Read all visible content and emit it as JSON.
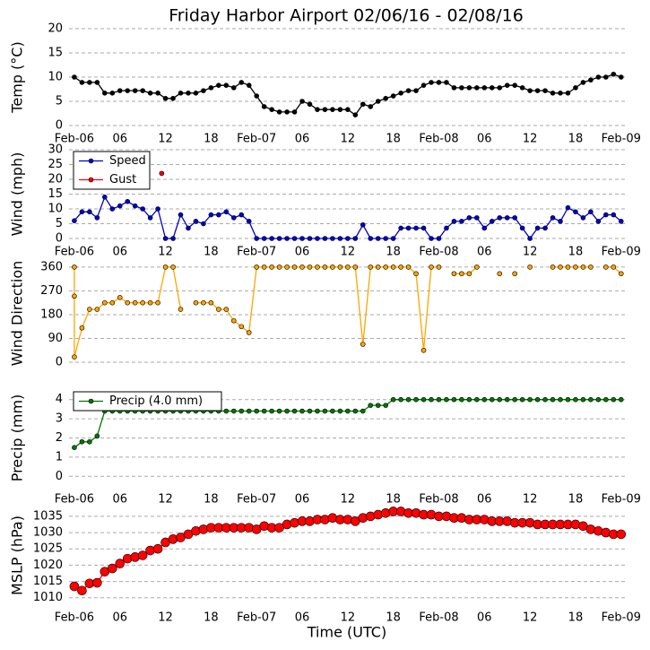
{
  "chart_data": [
    {
      "type": "line",
      "title": "Friday Harbor Airport 02/06/16 - 02/08/16",
      "ylabel": "Temp (°C)",
      "xlim": [
        -0.7,
        72.5
      ],
      "ylim": [
        0,
        20
      ],
      "yticks": [
        0,
        5,
        10,
        15,
        20
      ],
      "grid": true,
      "xticks": [
        {
          "value": 0,
          "label": "Feb-06"
        },
        {
          "value": 6,
          "label": "06"
        },
        {
          "value": 12,
          "label": "12"
        },
        {
          "value": 18,
          "label": "18"
        },
        {
          "value": 24,
          "label": "Feb-07"
        },
        {
          "value": 30,
          "label": "06"
        },
        {
          "value": 36,
          "label": "12"
        },
        {
          "value": 42,
          "label": "18"
        },
        {
          "value": 48,
          "label": "Feb-08"
        },
        {
          "value": 54,
          "label": "06"
        },
        {
          "value": 60,
          "label": "12"
        },
        {
          "value": 66,
          "label": "18"
        },
        {
          "value": 72,
          "label": "Feb-09"
        }
      ],
      "series": [
        {
          "color": "#000000",
          "x": [
            0,
            1,
            2,
            3,
            4,
            5,
            6,
            7,
            8,
            9,
            10,
            11,
            12,
            13,
            14,
            15,
            16,
            17,
            18,
            19,
            20,
            21,
            22,
            23,
            24,
            25,
            26,
            27,
            28,
            29,
            30,
            31,
            32,
            33,
            34,
            35,
            36,
            37,
            38,
            39,
            40,
            41,
            42,
            43,
            44,
            45,
            46,
            47,
            48,
            49,
            50,
            51,
            52,
            53,
            54,
            55,
            56,
            57,
            58,
            59,
            60,
            61,
            62,
            63,
            64,
            65,
            66,
            67,
            68,
            69,
            70,
            71,
            72
          ],
          "values": [
            10,
            8.9,
            8.9,
            8.9,
            6.7,
            6.7,
            7.2,
            7.2,
            7.2,
            7.2,
            6.7,
            6.7,
            5.6,
            5.6,
            6.7,
            6.7,
            6.7,
            7.2,
            7.8,
            8.3,
            8.3,
            7.8,
            8.9,
            8.3,
            6.1,
            3.9,
            3.3,
            2.8,
            2.8,
            2.8,
            5,
            4.4,
            3.3,
            3.3,
            3.3,
            3.3,
            3.3,
            2.2,
            4.4,
            3.9,
            5,
            5.6,
            6.1,
            6.7,
            7.2,
            7.2,
            8.3,
            8.9,
            8.9,
            8.9,
            7.8,
            7.8,
            7.8,
            7.8,
            7.8,
            7.8,
            7.8,
            8.3,
            8.3,
            7.8,
            7.2,
            7.2,
            7.2,
            6.7,
            6.7,
            6.7,
            7.8,
            8.9,
            9.4,
            10,
            10,
            10.6,
            10
          ]
        }
      ]
    },
    {
      "type": "line",
      "ylabel": "Wind (mph)",
      "legend": "upper left",
      "xlim": [
        -0.7,
        72.5
      ],
      "ylim": [
        0,
        30
      ],
      "yticks": [
        0,
        5,
        10,
        15,
        20,
        25,
        30
      ],
      "grid": true,
      "xticks": [
        {
          "value": 0,
          "label": "Feb-06"
        },
        {
          "value": 6,
          "label": "06"
        },
        {
          "value": 12,
          "label": "12"
        },
        {
          "value": 18,
          "label": "18"
        },
        {
          "value": 24,
          "label": "Feb-07"
        },
        {
          "value": 30,
          "label": "06"
        },
        {
          "value": 36,
          "label": "12"
        },
        {
          "value": 42,
          "label": "18"
        },
        {
          "value": 48,
          "label": "Feb-08"
        },
        {
          "value": 54,
          "label": "06"
        },
        {
          "value": 60,
          "label": "12"
        },
        {
          "value": 66,
          "label": "18"
        },
        {
          "value": 72,
          "label": "Feb-09"
        }
      ],
      "series": [
        {
          "name": "Speed",
          "color": "#0000cc",
          "x": [
            0,
            1,
            2,
            3,
            4,
            5,
            6,
            7,
            8,
            9,
            10,
            11,
            12,
            13,
            14,
            15,
            16,
            17,
            18,
            19,
            20,
            21,
            22,
            23,
            24,
            25,
            26,
            27,
            28,
            29,
            30,
            31,
            32,
            33,
            34,
            35,
            36,
            37,
            38,
            39,
            40,
            41,
            42,
            43,
            44,
            45,
            46,
            47,
            48,
            49,
            50,
            51,
            52,
            53,
            54,
            55,
            56,
            57,
            58,
            59,
            60,
            61,
            62,
            63,
            64,
            65,
            66,
            67,
            68,
            69,
            70,
            71,
            72
          ],
          "values": [
            6,
            9,
            9,
            7,
            14,
            10,
            11,
            12.5,
            11,
            10,
            7,
            10,
            0,
            0,
            8,
            3.5,
            5.8,
            5,
            8,
            8,
            9,
            7,
            8,
            5.8,
            0,
            0,
            0,
            0,
            0,
            0,
            0,
            0,
            0,
            0,
            0,
            0,
            0,
            0,
            4.6,
            0,
            0,
            0,
            0,
            3.5,
            3.5,
            3.5,
            3.5,
            0,
            0,
            3.5,
            5.8,
            5.8,
            7,
            7,
            3.5,
            5.8,
            7,
            7,
            7,
            3.5,
            0,
            3.5,
            3.5,
            7,
            5.8,
            10.4,
            9,
            7,
            9,
            5.8,
            8,
            8,
            5.8
          ]
        },
        {
          "name": "Gust",
          "color": "#ff0000",
          "type": "scatter",
          "x": [
            11.5
          ],
          "values": [
            22
          ]
        }
      ]
    },
    {
      "type": "line",
      "ylabel": "Wind Direction",
      "xlim": [
        -0.7,
        72.5
      ],
      "ylim": [
        -10,
        380
      ],
      "yticks": [
        0,
        90,
        180,
        270,
        360
      ],
      "grid": true,
      "series": [
        {
          "color": "#ffa500",
          "x": [
            0,
            0,
            0,
            1,
            2,
            3,
            4,
            5,
            6,
            7,
            8,
            9,
            10,
            11,
            12,
            13,
            14,
            15,
            16,
            17,
            18,
            19,
            20,
            21,
            22,
            23,
            24,
            25,
            26,
            27,
            28,
            29,
            30,
            31,
            32,
            33,
            34,
            35,
            36,
            37,
            38,
            39,
            40,
            41,
            42,
            43,
            44,
            45,
            46,
            47,
            48,
            49,
            50,
            51,
            52,
            53,
            54,
            55,
            56,
            57,
            58,
            59,
            60,
            61,
            62,
            63,
            64,
            65,
            66,
            67,
            68,
            69,
            70,
            71,
            72
          ],
          "values": [
            360,
            250,
            20,
            130,
            200,
            200,
            225,
            225,
            245,
            225,
            225,
            225,
            225,
            225,
            360,
            360,
            200,
            null,
            225,
            225,
            225,
            200,
            200,
            157,
            135,
            112,
            360,
            360,
            360,
            360,
            360,
            360,
            360,
            360,
            360,
            360,
            360,
            360,
            360,
            360,
            68,
            360,
            360,
            360,
            360,
            360,
            360,
            335,
            45,
            360,
            360,
            null,
            335,
            335,
            335,
            360,
            null,
            null,
            335,
            null,
            335,
            null,
            360,
            null,
            null,
            360,
            360,
            360,
            360,
            360,
            360,
            null,
            360,
            360,
            335
          ]
        }
      ]
    },
    {
      "type": "line",
      "ylabel": "Precip (mm)",
      "legend": "upper left",
      "xlim": [
        -0.7,
        72.5
      ],
      "ylim": [
        -0.5,
        4.5
      ],
      "yticks": [
        0,
        1,
        2,
        3,
        4
      ],
      "grid": true,
      "xticks": [
        {
          "value": 0,
          "label": "Feb-06"
        },
        {
          "value": 6,
          "label": "06"
        },
        {
          "value": 12,
          "label": "12"
        },
        {
          "value": 18,
          "label": "18"
        },
        {
          "value": 24,
          "label": "Feb-07"
        },
        {
          "value": 30,
          "label": "06"
        },
        {
          "value": 36,
          "label": "12"
        },
        {
          "value": 42,
          "label": "18"
        },
        {
          "value": 48,
          "label": "Feb-08"
        },
        {
          "value": 54,
          "label": "06"
        },
        {
          "value": 60,
          "label": "12"
        },
        {
          "value": 66,
          "label": "18"
        },
        {
          "value": 72,
          "label": "Feb-09"
        }
      ],
      "series": [
        {
          "name": "Precip (4.0 mm)",
          "color": "#007700",
          "x": [
            0,
            1,
            2,
            3,
            4,
            5,
            6,
            7,
            8,
            9,
            10,
            11,
            12,
            13,
            14,
            15,
            16,
            17,
            18,
            19,
            20,
            21,
            22,
            23,
            24,
            25,
            26,
            27,
            28,
            29,
            30,
            31,
            32,
            33,
            34,
            35,
            36,
            37,
            38,
            39,
            40,
            41,
            42,
            43,
            44,
            45,
            46,
            47,
            48,
            49,
            50,
            51,
            52,
            53,
            54,
            55,
            56,
            57,
            58,
            59,
            60,
            61,
            62,
            63,
            64,
            65,
            66,
            67,
            68,
            69,
            70,
            71,
            72
          ],
          "values": [
            1.5,
            1.8,
            1.8,
            2.1,
            3.4,
            3.4,
            3.4,
            3.4,
            3.4,
            3.4,
            3.4,
            3.4,
            3.4,
            3.4,
            3.4,
            3.4,
            3.4,
            3.4,
            3.4,
            3.4,
            3.4,
            3.4,
            3.4,
            3.4,
            3.4,
            3.4,
            3.4,
            3.4,
            3.4,
            3.4,
            3.4,
            3.4,
            3.4,
            3.4,
            3.4,
            3.4,
            3.4,
            3.4,
            3.4,
            3.7,
            3.7,
            3.7,
            4,
            4,
            4,
            4,
            4,
            4,
            4,
            4,
            4,
            4,
            4,
            4,
            4,
            4,
            4,
            4,
            4,
            4,
            4,
            4,
            4,
            4,
            4,
            4,
            4,
            4,
            4,
            4,
            4,
            4,
            4
          ]
        }
      ]
    },
    {
      "type": "line",
      "ylabel": "MSLP (hPa)",
      "xlabel": "Time (UTC)",
      "xlim": [
        -0.7,
        72.5
      ],
      "ylim": [
        1008,
        1038
      ],
      "yticks": [
        1010,
        1015,
        1020,
        1025,
        1030,
        1035
      ],
      "grid": true,
      "xticks": [
        {
          "value": 0,
          "label": "Feb-06"
        },
        {
          "value": 6,
          "label": "06"
        },
        {
          "value": 12,
          "label": "12"
        },
        {
          "value": 18,
          "label": "18"
        },
        {
          "value": 24,
          "label": "Feb-07"
        },
        {
          "value": 30,
          "label": "06"
        },
        {
          "value": 36,
          "label": "12"
        },
        {
          "value": 42,
          "label": "18"
        },
        {
          "value": 48,
          "label": "Feb-08"
        },
        {
          "value": 54,
          "label": "06"
        },
        {
          "value": 60,
          "label": "12"
        },
        {
          "value": 66,
          "label": "18"
        },
        {
          "value": 72,
          "label": "Feb-09"
        }
      ],
      "series": [
        {
          "color": "#ff0000",
          "x": [
            0,
            1,
            2,
            3,
            4,
            5,
            6,
            7,
            8,
            9,
            10,
            11,
            12,
            13,
            14,
            15,
            16,
            17,
            18,
            19,
            20,
            21,
            22,
            23,
            24,
            25,
            26,
            27,
            28,
            29,
            30,
            31,
            32,
            33,
            34,
            35,
            36,
            37,
            38,
            39,
            40,
            41,
            42,
            43,
            44,
            45,
            46,
            47,
            48,
            49,
            50,
            51,
            52,
            53,
            54,
            55,
            56,
            57,
            58,
            59,
            60,
            61,
            62,
            63,
            64,
            65,
            66,
            67,
            68,
            69,
            70,
            71,
            72
          ],
          "values": [
            1013.5,
            1012.2,
            1014.4,
            1014.6,
            1018,
            1019,
            1020.5,
            1022,
            1022.5,
            1023,
            1024.5,
            1025,
            1027,
            1028,
            1028.5,
            1029.5,
            1030.5,
            1031,
            1031.5,
            1031.5,
            1031.5,
            1031.5,
            1031.5,
            1031.5,
            1031,
            1032,
            1031.5,
            1031.5,
            1032.5,
            1033,
            1033.5,
            1033.5,
            1034,
            1034,
            1034.5,
            1034,
            1034,
            1033.5,
            1034.5,
            1035,
            1035.5,
            1036,
            1036.5,
            1036.5,
            1036,
            1036,
            1035.5,
            1035.5,
            1035,
            1035,
            1034.5,
            1034.5,
            1034,
            1034,
            1034,
            1033.5,
            1033.5,
            1033.5,
            1033,
            1033,
            1033,
            1032.5,
            1032.5,
            1032.5,
            1032.5,
            1032.5,
            1032.5,
            1032,
            1031,
            1030.5,
            1030,
            1029.5,
            1029.5
          ]
        }
      ]
    }
  ]
}
